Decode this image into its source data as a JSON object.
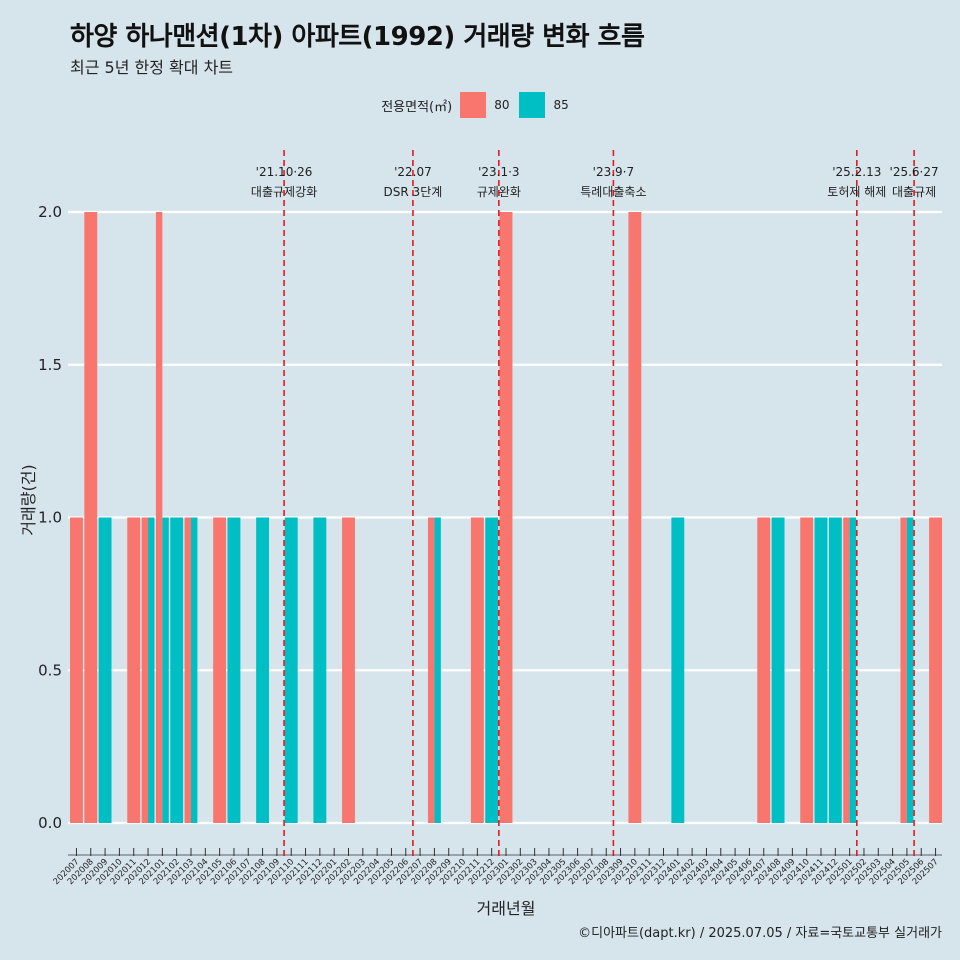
{
  "chart_data": {
    "type": "bar",
    "title": "하양 하나맨션(1차) 아파트(1992) 거래량 변화 흐름",
    "subtitle": "최근 5년 한정 확대 차트",
    "xlabel": "거래년월",
    "ylabel": "거래량(건)",
    "ylim": [
      0,
      2.2
    ],
    "yticks": [
      "0.0",
      "0.5",
      "1.0",
      "1.5",
      "2.0"
    ],
    "grid": true,
    "legend": {
      "title": "전용면적(㎡)",
      "placement": "top",
      "entries": [
        {
          "label": "80",
          "color": "#f8766d"
        },
        {
          "label": "85",
          "color": "#00bfc4"
        }
      ]
    },
    "categories": [
      "202007",
      "202008",
      "202009",
      "202010",
      "202011",
      "202012",
      "202101",
      "202102",
      "202103",
      "202104",
      "202105",
      "202106",
      "202107",
      "202108",
      "202109",
      "202110",
      "202111",
      "202112",
      "202201",
      "202202",
      "202203",
      "202204",
      "202205",
      "202206",
      "202207",
      "202208",
      "202209",
      "202210",
      "202211",
      "202212",
      "202301",
      "202302",
      "202303",
      "202304",
      "202305",
      "202306",
      "202307",
      "202308",
      "202309",
      "202310",
      "202311",
      "202312",
      "202401",
      "202402",
      "202403",
      "202404",
      "202405",
      "202406",
      "202407",
      "202408",
      "202409",
      "202410",
      "202411",
      "202412",
      "202501",
      "202502",
      "202503",
      "202504",
      "202505",
      "202506",
      "202507"
    ],
    "series": [
      {
        "name": "80",
        "color": "#f8766d",
        "values": [
          1,
          2,
          0,
          0,
          1,
          1,
          2,
          0,
          1,
          0,
          1,
          0,
          0,
          0,
          0,
          0,
          0,
          0,
          0,
          1,
          0,
          0,
          0,
          0,
          0,
          1,
          0,
          0,
          1,
          0,
          2,
          0,
          0,
          0,
          0,
          0,
          0,
          0,
          0,
          2,
          0,
          0,
          0,
          0,
          0,
          0,
          0,
          0,
          1,
          0,
          0,
          1,
          0,
          0,
          1,
          0,
          0,
          0,
          1,
          0,
          1
        ]
      },
      {
        "name": "85",
        "color": "#00bfc4",
        "values": [
          0,
          0,
          1,
          0,
          0,
          1,
          1,
          1,
          1,
          0,
          0,
          1,
          0,
          1,
          0,
          1,
          0,
          1,
          0,
          0,
          0,
          0,
          0,
          0,
          0,
          1,
          0,
          0,
          0,
          1,
          0,
          0,
          0,
          0,
          0,
          0,
          0,
          0,
          0,
          0,
          0,
          0,
          1,
          0,
          0,
          0,
          0,
          0,
          0,
          1,
          0,
          0,
          1,
          1,
          1,
          0,
          0,
          0,
          1,
          0,
          0
        ]
      }
    ],
    "annotations": [
      {
        "category": "202110",
        "date": "'21.10·26",
        "text": "대출규제강화"
      },
      {
        "category": "202207",
        "date": "'22.07",
        "text": "DSR 3단계"
      },
      {
        "category": "202301",
        "date": "'23.1·3",
        "text": "규제완화"
      },
      {
        "category": "202309",
        "date": "'23.9·7",
        "text": "특례대출축소"
      },
      {
        "category": "202502",
        "date": "'25.2.13",
        "text": "토허제 해제"
      },
      {
        "category": "202506",
        "date": "'25.6·27",
        "text": "대출규제"
      }
    ]
  },
  "caption": "©디아파트(dapt.kr) / 2025.07.05 / 자료=국토교통부 실거래가"
}
